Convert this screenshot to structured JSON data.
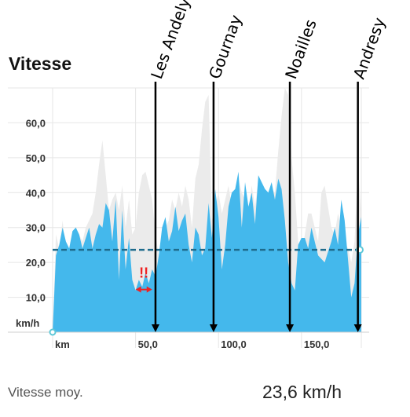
{
  "chart_data": {
    "type": "area",
    "title": "Vitesse",
    "ylabel": "km/h",
    "xlabel": "km",
    "ylim": [
      0,
      70
    ],
    "xlim": [
      0,
      187
    ],
    "y_ticks": [
      10,
      20,
      30,
      40,
      50,
      60
    ],
    "y_tick_labels": [
      "10,0",
      "20,0",
      "30,0",
      "40,0",
      "50,0",
      "60,0"
    ],
    "x_ticks": [
      50,
      100,
      150
    ],
    "x_tick_labels": [
      "50,0",
      "100,0",
      "150,0"
    ],
    "grid": true,
    "series": [
      {
        "x": [
          0,
          2,
          4,
          6,
          8,
          10,
          12,
          14,
          16,
          18,
          20,
          22,
          24,
          26,
          28,
          30,
          32,
          34,
          36,
          38,
          40,
          42,
          44,
          46,
          48,
          50,
          52,
          54,
          56,
          58,
          60,
          62,
          64,
          66,
          68,
          70,
          72,
          74,
          76,
          78,
          80,
          82,
          84,
          86,
          88,
          90,
          92,
          94,
          96,
          98,
          100,
          102,
          104,
          106,
          108,
          110,
          112,
          114,
          116,
          118,
          120,
          122,
          124,
          126,
          128,
          130,
          132,
          134,
          136,
          138,
          140,
          142,
          144,
          146,
          148,
          150,
          152,
          154,
          156,
          158,
          160,
          162,
          164,
          166,
          168,
          170,
          172,
          174,
          176,
          178,
          180,
          182,
          184,
          186
        ],
        "values": [
          0,
          22,
          25,
          30,
          26,
          24,
          29,
          30,
          28,
          24,
          27,
          30,
          24,
          28,
          31,
          30,
          37,
          35,
          26,
          38,
          15,
          35,
          18,
          27,
          15,
          12,
          15,
          13,
          17,
          14,
          18,
          16,
          22,
          30,
          33,
          26,
          29,
          36,
          29,
          32,
          34,
          25,
          20,
          30,
          28,
          22,
          24,
          37,
          27,
          41,
          33,
          18,
          25,
          36,
          40,
          41,
          46,
          30,
          43,
          36,
          40,
          31,
          45,
          43,
          41,
          40,
          43,
          38,
          44,
          41,
          32,
          20,
          14,
          12,
          25,
          27,
          27,
          24,
          30,
          26,
          22,
          21,
          20,
          23,
          26,
          30,
          25,
          38,
          32,
          21,
          10,
          14,
          28,
          33
        ]
      },
      {
        "x": [
          0,
          2,
          4,
          6,
          8,
          10,
          12,
          14,
          16,
          18,
          20,
          22,
          24,
          26,
          28,
          30,
          32,
          34,
          36,
          38,
          40,
          42,
          44,
          46,
          48,
          50,
          52,
          54,
          56,
          58,
          60,
          62,
          64,
          66,
          68,
          70,
          72,
          74,
          76,
          78,
          80,
          82,
          84,
          86,
          88,
          90,
          92,
          94,
          96,
          98,
          100,
          102,
          104,
          106,
          108,
          110,
          112,
          114,
          116,
          118,
          120,
          122,
          124,
          126,
          128,
          130,
          132,
          134,
          136,
          138,
          140,
          142,
          144,
          146,
          148,
          150,
          152,
          154,
          156,
          158,
          160,
          162,
          164,
          166,
          168,
          170,
          172,
          174,
          176,
          178,
          180,
          182,
          184,
          186
        ],
        "values": [
          0,
          28,
          24,
          32,
          22,
          20,
          25,
          27,
          28,
          26,
          30,
          32,
          34,
          40,
          48,
          55,
          45,
          35,
          38,
          40,
          35,
          42,
          30,
          38,
          28,
          30,
          40,
          45,
          46,
          42,
          38,
          28,
          22,
          26,
          30,
          32,
          38,
          35,
          40,
          36,
          42,
          38,
          30,
          44,
          48,
          58,
          66,
          68,
          32,
          36,
          40,
          34,
          38,
          42,
          36,
          38,
          44,
          40,
          38,
          35,
          42,
          36,
          44,
          41,
          40,
          36,
          41,
          40,
          52,
          62,
          70,
          68,
          50,
          40,
          26,
          22,
          28,
          34,
          34,
          30,
          26,
          40,
          42,
          36,
          30,
          28,
          34,
          30,
          26,
          24,
          20,
          26,
          48,
          34
        ]
      }
    ],
    "average": {
      "value": 23.6,
      "label": "Vitesse moy.",
      "display": "23,6 km/h"
    },
    "markers": [
      {
        "x": 62,
        "label": "Les Andelys"
      },
      {
        "x": 97,
        "label": "Gournay"
      },
      {
        "x": 143,
        "label": "Noailles"
      },
      {
        "x": 184,
        "label": "Andresy"
      }
    ],
    "annotation": {
      "text": "!!",
      "x_start": 50,
      "x_end": 60,
      "y": 12
    }
  },
  "colors": {
    "area": "#44b8ec",
    "area_secondary": "#ebebeb",
    "average_line": "#1e6b8c",
    "marker": "#000000",
    "annotation": "#ee2222",
    "grid": "#e6e6e6"
  }
}
